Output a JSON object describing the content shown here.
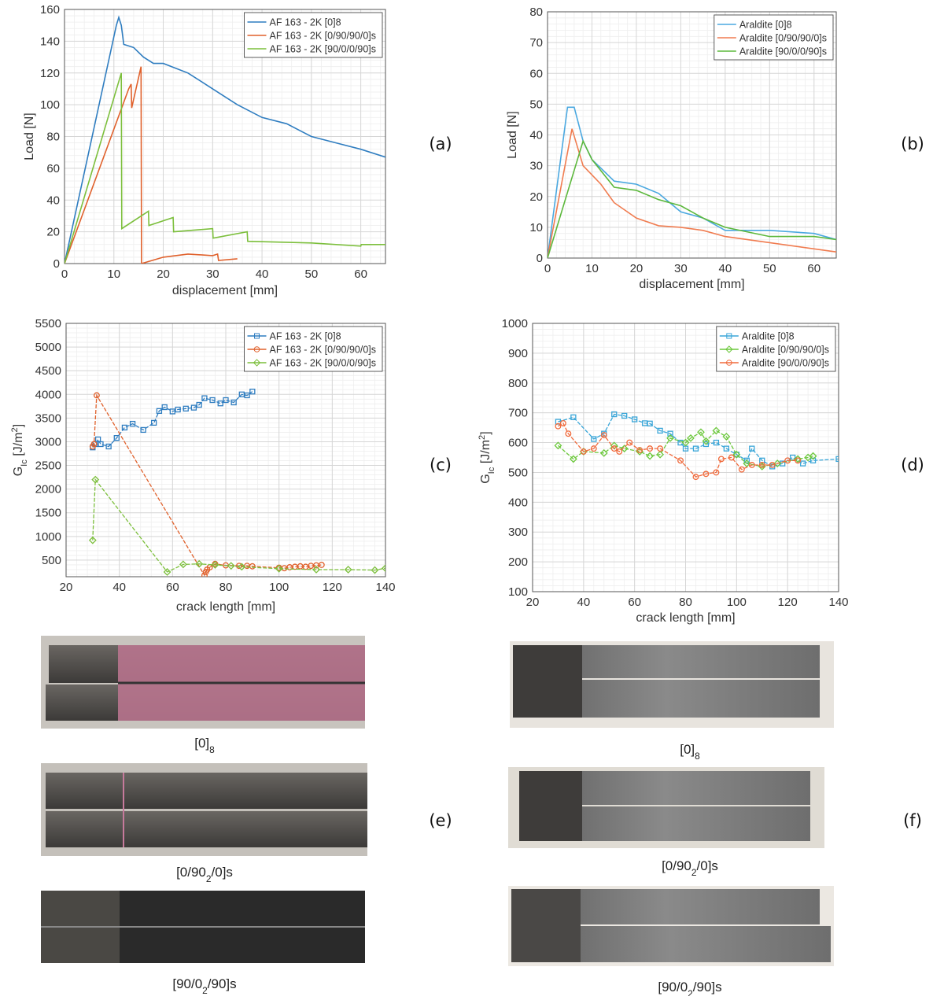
{
  "chart_data": [
    {
      "type": "line",
      "xlabel": "displacement [mm]",
      "ylabel_parts": [
        {
          "text": "Load [N]"
        }
      ],
      "xlim": [
        0,
        65
      ],
      "ylim": [
        0,
        160
      ],
      "xticks": [
        0,
        10,
        20,
        30,
        40,
        50,
        60
      ],
      "yticks": [
        0,
        20,
        40,
        60,
        80,
        100,
        120,
        140,
        160
      ],
      "grid": true,
      "legend": "upper right",
      "series": [
        {
          "name": "AF 163 - 2K [0]8",
          "color": "#2f7dc0",
          "x": [
            0,
            10.5,
            11,
            11.5,
            12,
            14,
            16,
            18,
            20,
            25,
            30,
            35,
            40,
            45,
            50,
            55,
            60,
            65
          ],
          "values": [
            0,
            150,
            155,
            150,
            138,
            136,
            130,
            126,
            126,
            120,
            110,
            100,
            92,
            88,
            80,
            76,
            72,
            67
          ]
        },
        {
          "name": "AF 163 - 2K [0/90/90/0]s",
          "color": "#e0612c",
          "x": [
            0,
            13,
            13.5,
            13.6,
            15.5,
            15.6,
            20,
            25,
            30,
            31,
            31.2,
            35
          ],
          "values": [
            0,
            110,
            113,
            98,
            124,
            0,
            4,
            6,
            5,
            6,
            2,
            3
          ]
        },
        {
          "name": "AF 163 - 2K [90/0/0/90]s",
          "color": "#7cbf3c",
          "x": [
            0,
            11.5,
            11.6,
            17,
            17.1,
            22,
            22.1,
            30,
            30.1,
            37,
            37.1,
            50,
            60,
            60.1,
            65
          ],
          "values": [
            0,
            120,
            22,
            33,
            24,
            29,
            20,
            22,
            16,
            20,
            14,
            13,
            11,
            12,
            12
          ]
        }
      ]
    },
    {
      "type": "line",
      "xlabel": "displacement [mm]",
      "ylabel_parts": [
        {
          "text": "Load [N]"
        }
      ],
      "xlim": [
        0,
        65
      ],
      "ylim": [
        0,
        80
      ],
      "xticks": [
        0,
        10,
        20,
        30,
        40,
        50,
        60
      ],
      "yticks": [
        0,
        10,
        20,
        30,
        40,
        50,
        60,
        70,
        80
      ],
      "grid": true,
      "legend": "upper right",
      "series": [
        {
          "name": "Araldite [0]8",
          "color": "#4aa8e0",
          "x": [
            0,
            4.5,
            6,
            8,
            10,
            15,
            20,
            25,
            30,
            35,
            40,
            50,
            60,
            65
          ],
          "values": [
            0,
            49,
            49,
            38,
            32,
            25,
            24,
            21,
            15,
            13,
            9,
            9,
            8,
            6
          ]
        },
        {
          "name": "Araldite [0/90/90/0]s",
          "color": "#f07c50",
          "x": [
            0,
            5.5,
            8,
            12,
            15,
            20,
            25,
            30,
            35,
            40,
            50,
            60,
            65
          ],
          "values": [
            0,
            42,
            30,
            24,
            18,
            13,
            10.5,
            10,
            9,
            7,
            5,
            3,
            2
          ]
        },
        {
          "name": "Araldite [90/0/0/90]s",
          "color": "#5cb83c",
          "x": [
            0,
            8,
            10,
            15,
            20,
            25,
            30,
            35,
            40,
            50,
            60,
            65
          ],
          "values": [
            0,
            38,
            32,
            23,
            22,
            19,
            17,
            13,
            10,
            7,
            7,
            6
          ]
        }
      ]
    },
    {
      "type": "line",
      "xlabel": "crack length [mm]",
      "ylabel_parts": [
        {
          "text": "G"
        },
        {
          "text": "Ic",
          "shift": "sub"
        },
        {
          "text": "  [J/m"
        },
        {
          "text": "2",
          "shift": "sup"
        },
        {
          "text": "]"
        }
      ],
      "xlim": [
        20,
        140
      ],
      "ylim": [
        150,
        5500
      ],
      "xticks": [
        20,
        40,
        60,
        80,
        100,
        120,
        140
      ],
      "yticks": [
        500,
        1000,
        1500,
        2000,
        2500,
        3000,
        3500,
        4000,
        4500,
        5000,
        5500
      ],
      "grid": true,
      "legend": "upper right",
      "series": [
        {
          "name": "AF 163 - 2K [0]8",
          "color": "#2f7dc0",
          "marker": "square",
          "x": [
            30,
            31,
            32,
            33,
            36,
            39,
            42,
            45,
            49,
            53,
            55,
            57,
            60,
            62,
            65,
            68,
            70,
            72,
            75,
            78,
            80,
            83,
            86,
            88,
            90
          ],
          "values": [
            2880,
            2950,
            3050,
            2950,
            2900,
            3080,
            3300,
            3380,
            3250,
            3400,
            3650,
            3730,
            3640,
            3680,
            3700,
            3720,
            3780,
            3920,
            3880,
            3810,
            3880,
            3830,
            4000,
            3980,
            4060
          ]
        },
        {
          "name": "AF 163 - 2K [0/90/90/0]s",
          "color": "#e0612c",
          "marker": "circle",
          "x": [
            30,
            30.5,
            31.5,
            72,
            72.5,
            73,
            74,
            76,
            80,
            85,
            88,
            90,
            100,
            102,
            104,
            106,
            108,
            110,
            112,
            114,
            116
          ],
          "values": [
            2900,
            2950,
            3980,
            180,
            250,
            300,
            350,
            420,
            390,
            380,
            380,
            370,
            340,
            330,
            350,
            360,
            370,
            360,
            380,
            390,
            400
          ]
        },
        {
          "name": "AF 163 - 2K [90/0/0/90]s",
          "color": "#7cbf3c",
          "marker": "diamond",
          "x": [
            30,
            31,
            58,
            64,
            70,
            76,
            82,
            86,
            100,
            114,
            126,
            136,
            140
          ],
          "values": [
            920,
            2200,
            250,
            410,
            420,
            400,
            380,
            360,
            320,
            300,
            300,
            290,
            330
          ]
        }
      ]
    },
    {
      "type": "line",
      "xlabel": "crack length [mm]",
      "ylabel_parts": [
        {
          "text": "G"
        },
        {
          "text": "Ic",
          "shift": "sub"
        },
        {
          "text": "  [J/m"
        },
        {
          "text": "2",
          "shift": "sup"
        },
        {
          "text": "]"
        }
      ],
      "xlim": [
        20,
        140
      ],
      "ylim": [
        100,
        1000
      ],
      "xticks": [
        20,
        40,
        60,
        80,
        100,
        120,
        140
      ],
      "yticks": [
        100,
        200,
        300,
        400,
        500,
        600,
        700,
        800,
        900,
        1000
      ],
      "grid": true,
      "legend": "upper right",
      "series": [
        {
          "name": "Araldite [0]8",
          "color": "#3aa6d8",
          "marker": "square",
          "x": [
            30,
            36,
            44,
            48,
            52,
            56,
            60,
            64,
            66,
            70,
            74,
            78,
            80,
            84,
            88,
            92,
            96,
            100,
            104,
            106,
            110,
            114,
            118,
            122,
            126,
            130,
            140
          ],
          "values": [
            670,
            685,
            612,
            630,
            695,
            690,
            678,
            665,
            664,
            640,
            630,
            600,
            580,
            580,
            595,
            600,
            580,
            560,
            540,
            580,
            540,
            520,
            530,
            550,
            530,
            540,
            545
          ]
        },
        {
          "name": "Araldite [0/90/90/0]s",
          "color": "#6cc83c",
          "marker": "diamond",
          "x": [
            30,
            36,
            40,
            48,
            52,
            56,
            62,
            66,
            70,
            74,
            80,
            82,
            86,
            88,
            92,
            96,
            100,
            104,
            110,
            116,
            124,
            128,
            130
          ],
          "values": [
            590,
            545,
            570,
            565,
            590,
            580,
            570,
            555,
            560,
            615,
            600,
            615,
            635,
            605,
            640,
            620,
            560,
            530,
            520,
            530,
            545,
            550,
            555
          ]
        },
        {
          "name": "Araldite [90/0/0/90]s",
          "color": "#f06a3c",
          "marker": "circle",
          "x": [
            30,
            32,
            34,
            40,
            44,
            48,
            52,
            54,
            58,
            62,
            66,
            70,
            78,
            84,
            88,
            92,
            94,
            98,
            102,
            106,
            110,
            114,
            120,
            124
          ],
          "values": [
            655,
            665,
            630,
            570,
            580,
            625,
            580,
            570,
            600,
            575,
            580,
            580,
            540,
            485,
            495,
            500,
            545,
            550,
            510,
            525,
            525,
            525,
            540,
            540
          ]
        }
      ]
    }
  ],
  "panels": [
    "(a)",
    "(b)",
    "(c)",
    "(d)",
    "(e)",
    "(f)"
  ],
  "captions": [
    [
      {
        "text": "[0]"
      },
      {
        "text": "8",
        "shift": "sub"
      }
    ],
    [
      {
        "text": "[0/90"
      },
      {
        "text": "2",
        "shift": "sub"
      },
      {
        "text": "/0]s"
      }
    ],
    [
      {
        "text": "[90/0"
      },
      {
        "text": "2",
        "shift": "sub"
      },
      {
        "text": "/90]s"
      }
    ],
    [
      {
        "text": "[0]"
      },
      {
        "text": "8",
        "shift": "sub"
      }
    ],
    [
      {
        "text": "[0/90"
      },
      {
        "text": "2",
        "shift": "sub"
      },
      {
        "text": "/0]s"
      }
    ],
    [
      {
        "text": "[90/0"
      },
      {
        "text": "2",
        "shift": "sub"
      },
      {
        "text": "/90]s"
      }
    ]
  ]
}
